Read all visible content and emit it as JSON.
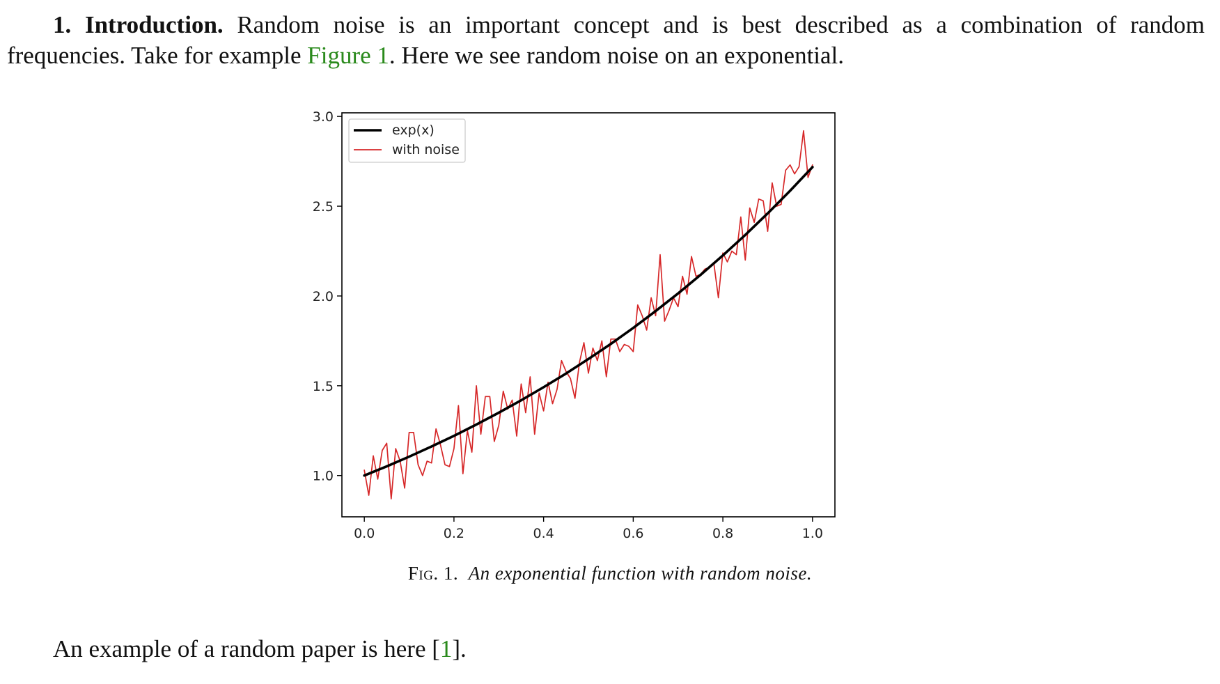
{
  "section": {
    "number": "1.",
    "heading": "Introduction.",
    "text_a": "Random noise is an important concept and is best described as a combination of random frequencies. Take for example",
    "figure_ref": "Figure 1",
    "text_b": ". Here we see random noise on an exponential."
  },
  "caption": {
    "label": "Fig. 1.",
    "text": "An exponential function with random noise."
  },
  "closing": {
    "text_a": "An example of a random paper is here ",
    "bracket_open": "[",
    "citation": "1",
    "bracket_close": "]."
  },
  "chart_data": {
    "type": "line",
    "title": "",
    "xlabel": "",
    "ylabel": "",
    "xlim": [
      -0.05,
      1.05
    ],
    "ylim": [
      0.77,
      3.02
    ],
    "xticks": [
      "0.0",
      "0.2",
      "0.4",
      "0.6",
      "0.8",
      "1.0"
    ],
    "yticks": [
      "1.0",
      "1.5",
      "2.0",
      "2.5",
      "3.0"
    ],
    "xtick_values": [
      0.0,
      0.2,
      0.4,
      0.6,
      0.8,
      1.0
    ],
    "ytick_values": [
      1.0,
      1.5,
      2.0,
      2.5,
      3.0
    ],
    "legend_position": "upper-left",
    "grid": false,
    "series": [
      {
        "name": "exp(x)",
        "color": "#000000",
        "x": [
          0.0,
          0.05,
          0.1,
          0.15,
          0.2,
          0.25,
          0.3,
          0.35,
          0.4,
          0.45,
          0.5,
          0.55,
          0.6,
          0.65,
          0.7,
          0.75,
          0.8,
          0.85,
          0.9,
          0.95,
          1.0
        ],
        "y": [
          1.0,
          1.051,
          1.105,
          1.162,
          1.221,
          1.284,
          1.35,
          1.419,
          1.492,
          1.568,
          1.649,
          1.733,
          1.822,
          1.916,
          2.014,
          2.117,
          2.226,
          2.34,
          2.46,
          2.586,
          2.718
        ]
      },
      {
        "name": "with noise",
        "color": "#d62728",
        "x": [
          0.0,
          0.01,
          0.02,
          0.03,
          0.04,
          0.05,
          0.06,
          0.07,
          0.08,
          0.09,
          0.1,
          0.11,
          0.12,
          0.13,
          0.14,
          0.15,
          0.16,
          0.17,
          0.18,
          0.19,
          0.2,
          0.21,
          0.22,
          0.23,
          0.24,
          0.25,
          0.26,
          0.27,
          0.28,
          0.29,
          0.3,
          0.31,
          0.32,
          0.33,
          0.34,
          0.35,
          0.36,
          0.37,
          0.38,
          0.39,
          0.4,
          0.41,
          0.42,
          0.43,
          0.44,
          0.45,
          0.46,
          0.47,
          0.48,
          0.49,
          0.5,
          0.51,
          0.52,
          0.53,
          0.54,
          0.55,
          0.56,
          0.57,
          0.58,
          0.59,
          0.6,
          0.61,
          0.62,
          0.63,
          0.64,
          0.65,
          0.66,
          0.67,
          0.68,
          0.69,
          0.7,
          0.71,
          0.72,
          0.73,
          0.74,
          0.75,
          0.76,
          0.77,
          0.78,
          0.79,
          0.8,
          0.81,
          0.82,
          0.83,
          0.84,
          0.85,
          0.86,
          0.87,
          0.88,
          0.89,
          0.9,
          0.91,
          0.92,
          0.93,
          0.94,
          0.95,
          0.96,
          0.97,
          0.98,
          0.99,
          1.0
        ],
        "y": [
          1.03,
          0.89,
          1.11,
          0.98,
          1.14,
          1.18,
          0.87,
          1.15,
          1.08,
          0.93,
          1.24,
          1.24,
          1.06,
          1.0,
          1.08,
          1.07,
          1.26,
          1.17,
          1.06,
          1.05,
          1.15,
          1.39,
          1.01,
          1.25,
          1.13,
          1.5,
          1.23,
          1.44,
          1.44,
          1.19,
          1.28,
          1.47,
          1.37,
          1.42,
          1.22,
          1.51,
          1.35,
          1.55,
          1.23,
          1.46,
          1.36,
          1.52,
          1.4,
          1.48,
          1.64,
          1.58,
          1.54,
          1.43,
          1.63,
          1.74,
          1.57,
          1.71,
          1.64,
          1.75,
          1.55,
          1.76,
          1.76,
          1.69,
          1.73,
          1.72,
          1.69,
          1.95,
          1.89,
          1.81,
          1.99,
          1.89,
          2.23,
          1.86,
          1.92,
          1.99,
          1.94,
          2.11,
          2.01,
          2.22,
          2.11,
          2.12,
          2.15,
          2.16,
          2.18,
          1.99,
          2.24,
          2.19,
          2.25,
          2.23,
          2.44,
          2.2,
          2.49,
          2.41,
          2.54,
          2.53,
          2.36,
          2.63,
          2.5,
          2.51,
          2.7,
          2.73,
          2.68,
          2.72,
          2.92,
          2.66,
          2.73
        ]
      }
    ]
  }
}
